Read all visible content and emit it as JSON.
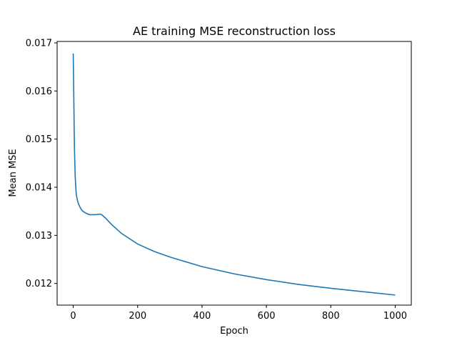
{
  "chart_data": {
    "type": "line",
    "title": "AE training MSE reconstruction loss",
    "xlabel": "Epoch",
    "ylabel": "Mean MSE",
    "xlim": [
      -50,
      1050
    ],
    "ylim": [
      0.01155,
      0.01703
    ],
    "grid": false,
    "x_ticks": [
      0,
      200,
      400,
      600,
      800,
      1000
    ],
    "x_tick_labels": [
      "0",
      "200",
      "400",
      "600",
      "800",
      "1000"
    ],
    "y_ticks": [
      0.012,
      0.013,
      0.014,
      0.015,
      0.016,
      0.017
    ],
    "y_tick_labels": [
      "0.012",
      "0.013",
      "0.014",
      "0.015",
      "0.016",
      "0.017"
    ],
    "series": [
      {
        "color": "#1f77b4",
        "x": [
          0,
          1,
          2,
          3,
          4,
          6,
          8,
          10,
          13,
          16,
          20,
          25,
          30,
          40,
          50,
          60,
          70,
          80,
          85,
          90,
          100,
          120,
          150,
          200,
          250,
          300,
          400,
          500,
          600,
          700,
          800,
          900,
          1000
        ],
        "y": [
          0.01678,
          0.0163,
          0.01575,
          0.0152,
          0.01475,
          0.01425,
          0.01398,
          0.01383,
          0.01373,
          0.01366,
          0.0136,
          0.01354,
          0.0135,
          0.01346,
          0.01343,
          0.01343,
          0.01343,
          0.01344,
          0.01344,
          0.01342,
          0.01336,
          0.01322,
          0.01304,
          0.01282,
          0.01267,
          0.01255,
          0.01235,
          0.0122,
          0.01208,
          0.01198,
          0.0119,
          0.01183,
          0.01176
        ]
      }
    ]
  }
}
